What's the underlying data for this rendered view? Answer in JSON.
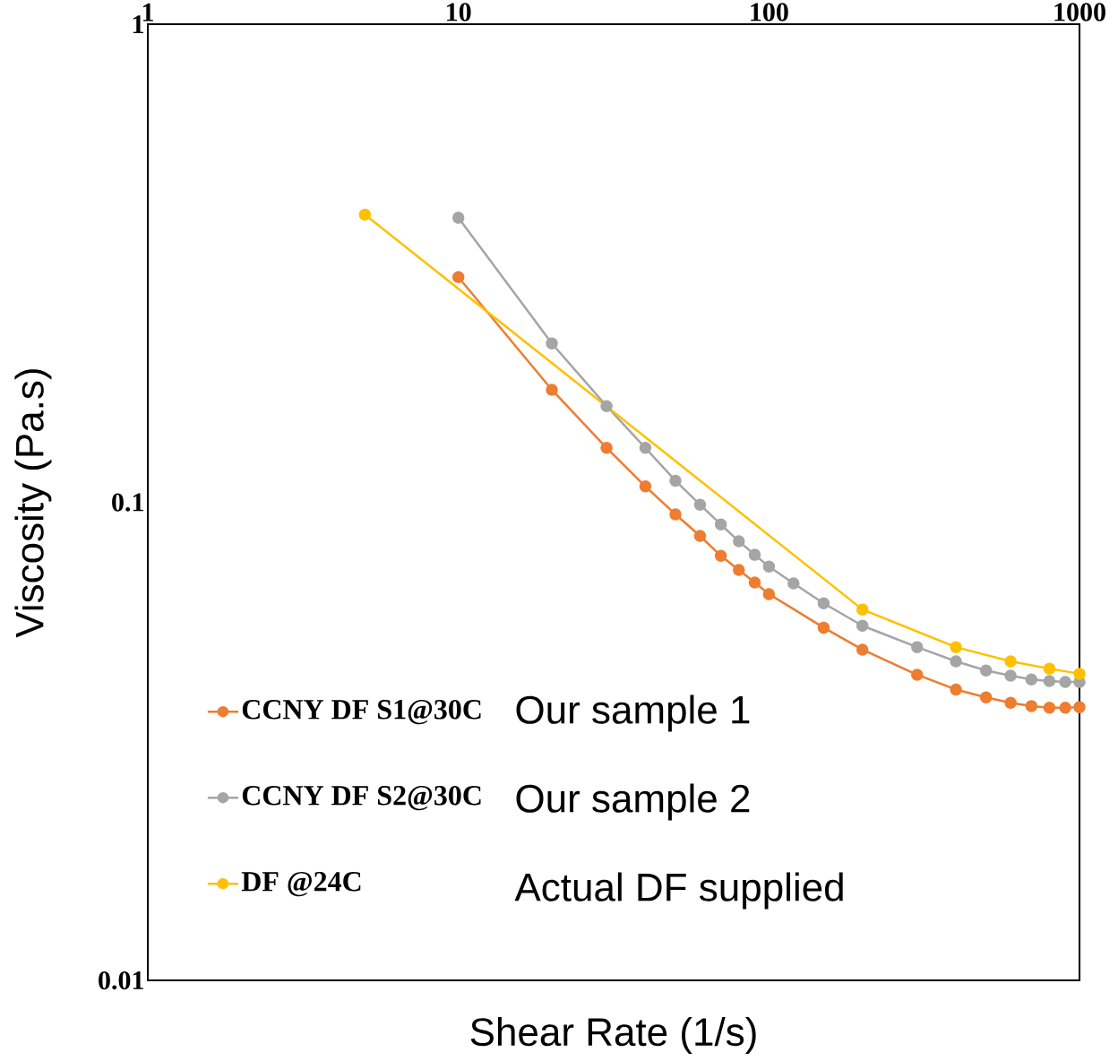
{
  "chart_data": {
    "type": "line",
    "xlabel": "Shear Rate (1/s)",
    "ylabel": "Viscosity (Pa.s)",
    "log": "xy",
    "xlim": [
      1,
      1000
    ],
    "ylim": [
      0.01,
      1
    ],
    "xticks": [
      1,
      10,
      100,
      1000
    ],
    "yticks": [
      0.01,
      0.1,
      1
    ],
    "legend": "bottom left",
    "marker": "circle",
    "series": [
      {
        "name": "CCNY DF S1@30C",
        "color": "#ed7d31",
        "x": [
          10,
          20,
          30,
          40,
          50,
          60,
          70,
          80,
          90,
          100,
          150,
          200,
          300,
          400,
          500,
          600,
          700,
          800,
          900,
          1000
        ],
        "values": [
          0.296,
          0.172,
          0.13,
          0.108,
          0.0944,
          0.0851,
          0.0773,
          0.0722,
          0.068,
          0.0643,
          0.0547,
          0.0492,
          0.0436,
          0.0406,
          0.0391,
          0.0381,
          0.0375,
          0.0372,
          0.0372,
          0.0373
        ]
      },
      {
        "name": "CCNY DF S2@30C",
        "color": "#a5a5a5",
        "x": [
          10,
          20,
          30,
          40,
          50,
          60,
          70,
          80,
          90,
          100,
          120,
          150,
          200,
          300,
          400,
          500,
          600,
          700,
          800,
          900,
          1000
        ],
        "values": [
          0.394,
          0.215,
          0.159,
          0.13,
          0.111,
          0.0989,
          0.0899,
          0.0829,
          0.0777,
          0.0734,
          0.0677,
          0.0615,
          0.0552,
          0.0498,
          0.0465,
          0.0445,
          0.0434,
          0.0426,
          0.0423,
          0.0421,
          0.0421
        ]
      },
      {
        "name": "DF @24C",
        "color": "#ffc000",
        "x": [
          5,
          200,
          400,
          600,
          800,
          1000
        ],
        "values": [
          0.4,
          0.0597,
          0.0498,
          0.0465,
          0.0449,
          0.0438
        ]
      }
    ],
    "annotations": [
      "Our sample 1",
      "Our sample 2",
      "Actual DF supplied"
    ]
  }
}
